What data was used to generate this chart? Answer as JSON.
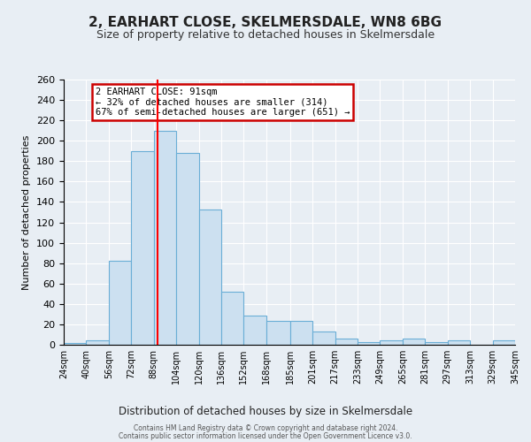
{
  "title": "2, EARHART CLOSE, SKELMERSDALE, WN8 6BG",
  "subtitle": "Size of property relative to detached houses in Skelmersdale",
  "xlabel": "Distribution of detached houses by size in Skelmersdale",
  "ylabel": "Number of detached properties",
  "bar_color": "#cce0f0",
  "bar_edge_color": "#6aaed6",
  "bin_labels": [
    "24sqm",
    "40sqm",
    "56sqm",
    "72sqm",
    "88sqm",
    "104sqm",
    "120sqm",
    "136sqm",
    "152sqm",
    "168sqm",
    "185sqm",
    "201sqm",
    "217sqm",
    "233sqm",
    "249sqm",
    "265sqm",
    "281sqm",
    "297sqm",
    "313sqm",
    "329sqm",
    "345sqm"
  ],
  "bar_heights": [
    2,
    4,
    82,
    190,
    210,
    188,
    133,
    52,
    29,
    23,
    23,
    13,
    6,
    3,
    4,
    6,
    3,
    4,
    0,
    4
  ],
  "bin_edges": [
    24,
    40,
    56,
    72,
    88,
    104,
    120,
    136,
    152,
    168,
    185,
    201,
    217,
    233,
    249,
    265,
    281,
    297,
    313,
    329,
    345
  ],
  "red_line_x": 91,
  "ylim": [
    0,
    260
  ],
  "yticks": [
    0,
    20,
    40,
    60,
    80,
    100,
    120,
    140,
    160,
    180,
    200,
    220,
    240,
    260
  ],
  "annotation_title": "2 EARHART CLOSE: 91sqm",
  "annotation_line1": "← 32% of detached houses are smaller (314)",
  "annotation_line2": "67% of semi-detached houses are larger (651) →",
  "annotation_box_facecolor": "#ffffff",
  "annotation_box_edgecolor": "#cc0000",
  "footer_line1": "Contains HM Land Registry data © Crown copyright and database right 2024.",
  "footer_line2": "Contains public sector information licensed under the Open Government Licence v3.0.",
  "background_color": "#e8eef4",
  "grid_color": "#ffffff"
}
